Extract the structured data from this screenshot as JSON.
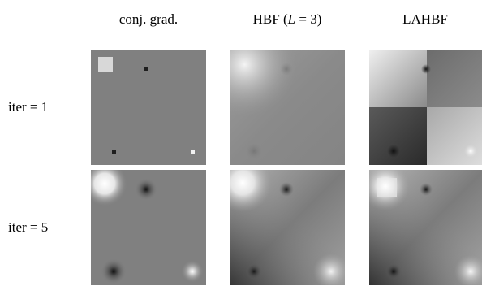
{
  "columns": [
    {
      "label_pre": "conj. grad.",
      "label_var": "",
      "label_post": ""
    },
    {
      "label_pre": "HBF (",
      "label_var": "L",
      "label_post": " = 3)"
    },
    {
      "label_pre": "LAHBF",
      "label_var": "",
      "label_post": ""
    }
  ],
  "rows": [
    {
      "label": "iter = 1"
    },
    {
      "label": "iter = 5"
    }
  ],
  "colors": {
    "background_gray": "#808080",
    "bright": "#f0f0f0",
    "dark": "#202020"
  }
}
